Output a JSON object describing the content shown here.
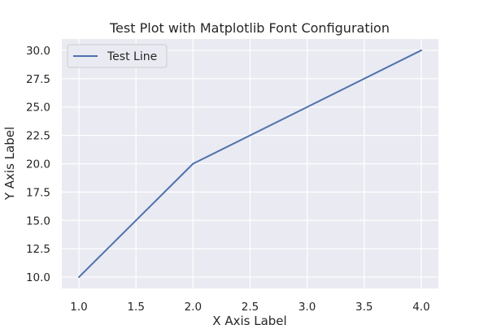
{
  "chart_data": {
    "type": "line",
    "title": "Test Plot with Matplotlib Font Configuration",
    "xlabel": "X Axis Label",
    "ylabel": "Y Axis Label",
    "xlim": [
      0.85,
      4.15
    ],
    "ylim": [
      9.0,
      31.0
    ],
    "xticks": [
      "1.0",
      "1.5",
      "2.0",
      "2.5",
      "3.0",
      "3.5",
      "4.0"
    ],
    "yticks": [
      "10.0",
      "12.5",
      "15.0",
      "17.5",
      "20.0",
      "22.5",
      "25.0",
      "27.5",
      "30.0"
    ],
    "grid": true,
    "legend_position": "upper-left",
    "series": [
      {
        "name": "Test Line",
        "x": [
          1,
          2,
          3,
          4
        ],
        "y": [
          10,
          20,
          25,
          30
        ],
        "color": "#4c72b0"
      }
    ],
    "colors": {
      "plot_background": "#eaeaf2",
      "grid": "#ffffff",
      "text": "#262626"
    }
  }
}
